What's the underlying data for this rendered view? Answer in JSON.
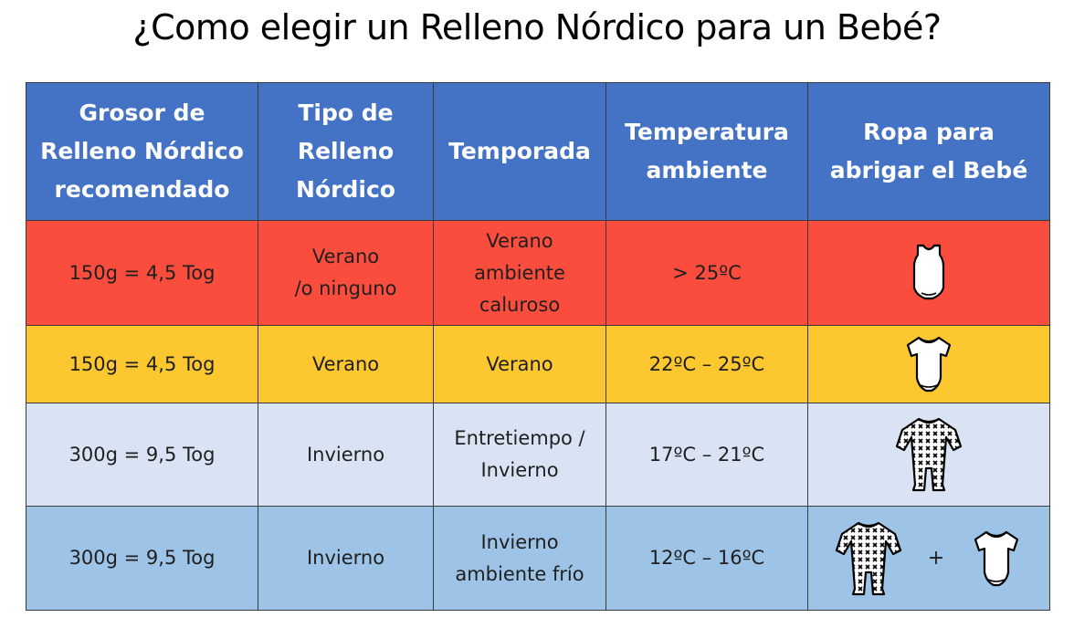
{
  "title": "¿Como elegir un Relleno Nórdico para un Bebé?",
  "table": {
    "headers": [
      "Grosor de\nRelleno Nórdico\nrecomendado",
      "Tipo de\nRelleno\nNórdico",
      "Temporada",
      "Temperatura\nambiente",
      "Ropa para\nabrigar el Bebé"
    ],
    "rows": [
      {
        "grosor": "150g = 4,5 Tog",
        "tipo": "Verano\n/o ninguno",
        "temporada": "Verano\nambiente\ncaluroso",
        "temperatura": "> 25ºC",
        "ropa": [
          "sleeveless-bodysuit-icon"
        ]
      },
      {
        "grosor": "150g = 4,5 Tog",
        "tipo": "Verano",
        "temporada": "Verano",
        "temperatura": "22ºC –  25ºC",
        "ropa": [
          "short-sleeve-bodysuit-icon"
        ]
      },
      {
        "grosor": "300g = 9,5 Tog",
        "tipo": "Invierno",
        "temporada": "Entretiempo /\nInvierno",
        "temperatura": "17ºC – 21ºC",
        "ropa": [
          "patterned-sleepsuit-icon"
        ]
      },
      {
        "grosor": "300g = 9,5 Tog",
        "tipo": "Invierno",
        "temporada": "Invierno\nambiente frío",
        "temperatura": "12ºC – 16ºC",
        "ropa": [
          "patterned-sleepsuit-icon",
          "short-sleeve-bodysuit-icon"
        ],
        "ropa_joiner": "+"
      }
    ]
  },
  "colors": {
    "header": "#4472c4",
    "row_hot": "#fb4d3d",
    "row_warm": "#fdc82f",
    "row_mild": "#dae3f3",
    "row_cold": "#9dc3e6"
  }
}
